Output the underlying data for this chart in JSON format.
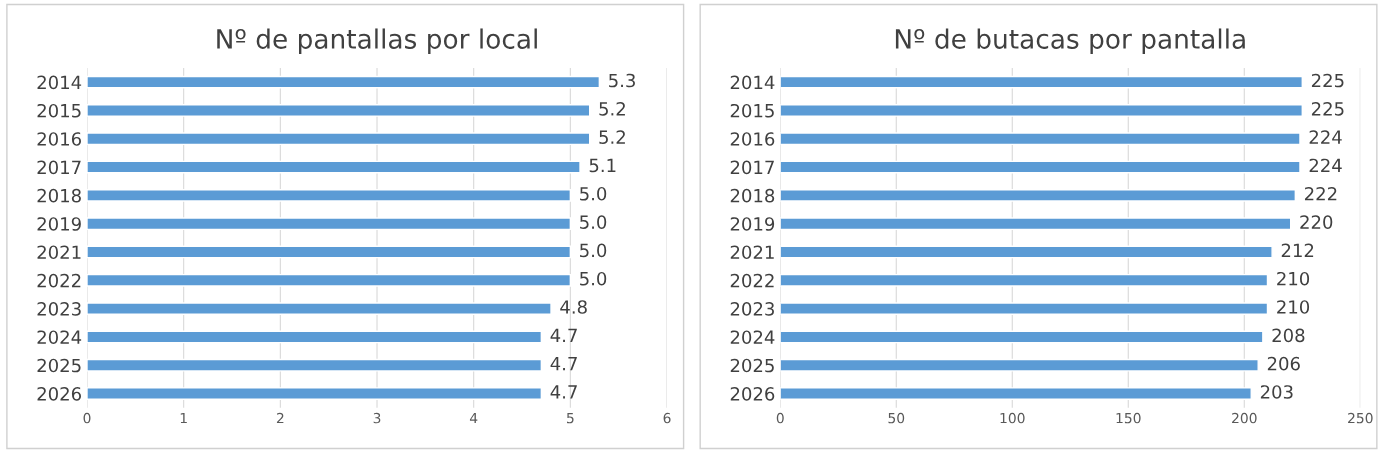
{
  "chart_data": [
    {
      "type": "bar",
      "orientation": "horizontal",
      "title": "Nº de pantallas por local",
      "categories": [
        "2014",
        "2015",
        "2016",
        "2017",
        "2018",
        "2019",
        "2021",
        "2022",
        "2023",
        "2024",
        "2025",
        "2026"
      ],
      "values": [
        5.3,
        5.2,
        5.2,
        5.1,
        5.0,
        5.0,
        5.0,
        5.0,
        4.8,
        4.7,
        4.7,
        4.7
      ],
      "value_labels": [
        "5.3",
        "5.2",
        "5.2",
        "5.1",
        "5.0",
        "5.0",
        "5.0",
        "5.0",
        "4.8",
        "4.7",
        "4.7",
        "4.7"
      ],
      "color": "#5b9bd5",
      "xlim": [
        0,
        6
      ],
      "xticks": [
        0,
        1,
        2,
        3,
        4,
        5,
        6
      ],
      "grid": "x",
      "legend": false
    },
    {
      "type": "bar",
      "orientation": "horizontal",
      "title": "Nº de butacas por pantalla",
      "categories": [
        "2014",
        "2015",
        "2016",
        "2017",
        "2018",
        "2019",
        "2021",
        "2022",
        "2023",
        "2024",
        "2025",
        "2026"
      ],
      "values": [
        225,
        225,
        224,
        224,
        222,
        220,
        212,
        210,
        210,
        208,
        206,
        203
      ],
      "value_labels": [
        "225",
        "225",
        "224",
        "224",
        "222",
        "220",
        "212",
        "210",
        "210",
        "208",
        "206",
        "203"
      ],
      "color": "#5b9bd5",
      "xlim": [
        0,
        250
      ],
      "xticks": [
        0,
        50,
        100,
        150,
        200,
        250
      ],
      "grid": "x",
      "legend": false
    }
  ]
}
